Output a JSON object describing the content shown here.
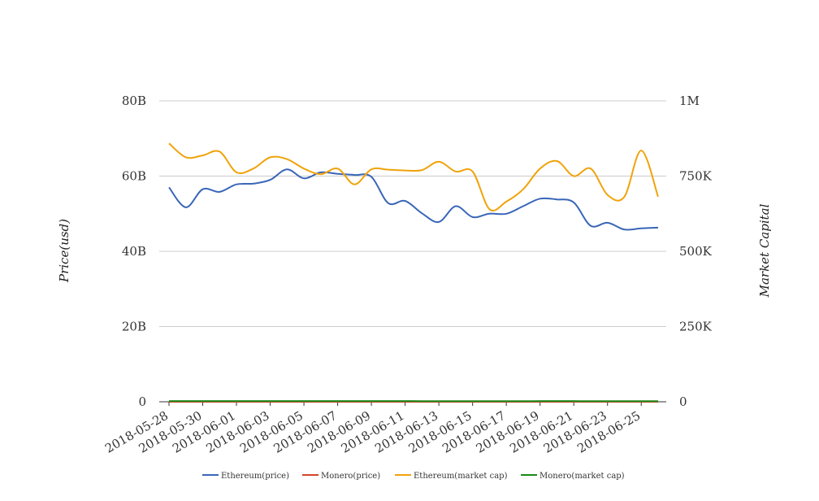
{
  "chart_data": {
    "type": "line",
    "title": "",
    "xlabel": "",
    "ylabel": "Price(usd)",
    "y2label": "Market Capital",
    "x": [
      "2018-05-28",
      "2018-05-29",
      "2018-05-30",
      "2018-05-31",
      "2018-06-01",
      "2018-06-02",
      "2018-06-03",
      "2018-06-04",
      "2018-06-05",
      "2018-06-06",
      "2018-06-07",
      "2018-06-08",
      "2018-06-09",
      "2018-06-10",
      "2018-06-11",
      "2018-06-12",
      "2018-06-13",
      "2018-06-14",
      "2018-06-15",
      "2018-06-16",
      "2018-06-17",
      "2018-06-18",
      "2018-06-19",
      "2018-06-20",
      "2018-06-21",
      "2018-06-22",
      "2018-06-23",
      "2018-06-24",
      "2018-06-25",
      "2018-06-26"
    ],
    "x_tick_labels": [
      "2018-05-28",
      "2018-05-30",
      "2018-06-01",
      "2018-06-03",
      "2018-06-05",
      "2018-06-07",
      "2018-06-09",
      "2018-06-11",
      "2018-06-13",
      "2018-06-15",
      "2018-06-17",
      "2018-06-19",
      "2018-06-21",
      "2018-06-23",
      "2018-06-25"
    ],
    "y_ticks": [
      "0",
      "20B",
      "40B",
      "60B",
      "80B"
    ],
    "y2_ticks": [
      "0",
      "250K",
      "500K",
      "750K",
      "1M"
    ],
    "ylim": [
      0,
      80000000000
    ],
    "y2lim": [
      0,
      1000000
    ],
    "grid": true,
    "legend_position": "bottom",
    "series": [
      {
        "name": "Ethereum(price)",
        "axis": "left",
        "color": "#3a66b8",
        "values": [
          57,
          51.7,
          56.5,
          55.8,
          57.8,
          58,
          59,
          61.8,
          59.4,
          61,
          60.6,
          60.3,
          59.8,
          52.8,
          53.4,
          50.1,
          47.8,
          52,
          49.1,
          50,
          50,
          52,
          54,
          53.8,
          53,
          46.8,
          47.6,
          45.8,
          46.1,
          46.3
        ]
      },
      {
        "name": "Monero(price)",
        "axis": "left",
        "color": "#d4462a",
        "values": [
          0.00015,
          0.00014,
          0.00015,
          0.00014,
          0.00015,
          0.00015,
          0.00016,
          0.00016,
          0.00015,
          0.00016,
          0.00016,
          0.00015,
          0.00015,
          0.00013,
          0.00013,
          0.00013,
          0.00012,
          0.00013,
          0.00012,
          0.00012,
          0.00012,
          0.00012,
          0.00013,
          0.00013,
          0.00013,
          0.00011,
          0.00011,
          0.00011,
          0.00011,
          0.00011
        ]
      },
      {
        "name": "Ethereum(market cap)",
        "axis": "left",
        "color": "#f0a30a",
        "values": [
          68.7,
          65,
          65.5,
          66.5,
          61,
          62,
          65,
          64.5,
          62,
          60.5,
          62,
          57.8,
          61.8,
          61.7,
          61.5,
          61.6,
          63.8,
          61.2,
          61.2,
          51.2,
          53.2,
          56.5,
          62,
          64,
          60,
          62,
          55,
          54.5,
          66.8,
          54.5
        ]
      },
      {
        "name": "Monero(market cap)",
        "axis": "right",
        "color": "#1a8a1a",
        "values": [
          2400,
          2300,
          2400,
          2350,
          2400,
          2450,
          2500,
          2550,
          2450,
          2500,
          2500,
          2450,
          2450,
          2300,
          2300,
          2250,
          2200,
          2250,
          2200,
          2200,
          2200,
          2250,
          2300,
          2300,
          2300,
          2100,
          2100,
          2050,
          2050,
          2050
        ]
      }
    ]
  }
}
